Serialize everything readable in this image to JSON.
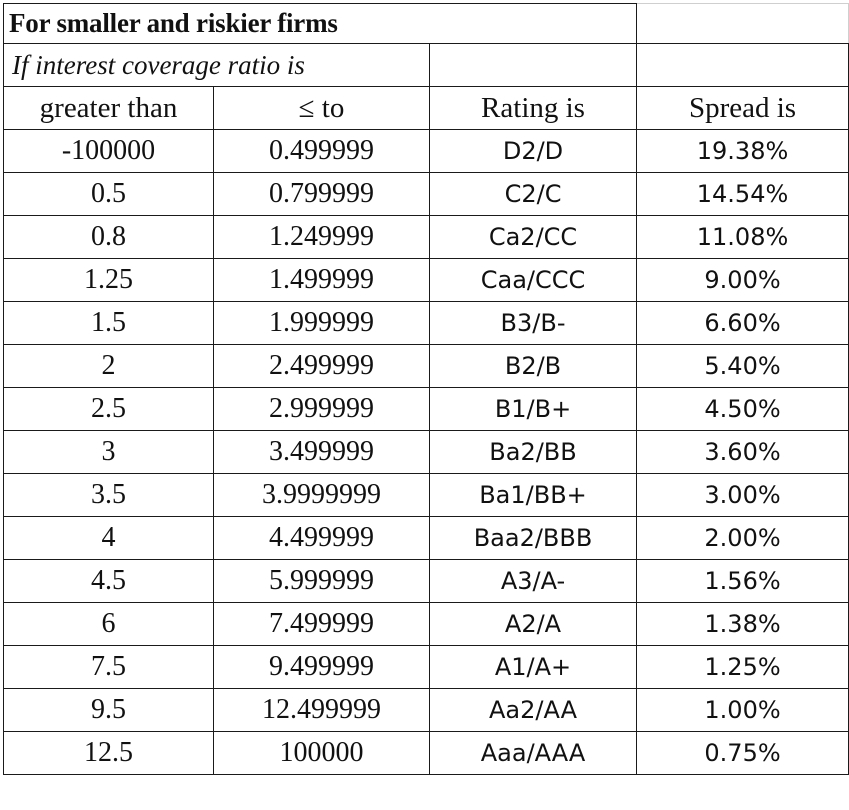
{
  "table": {
    "title": "For smaller and riskier firms",
    "subtitle": "If interest coverage ratio is",
    "headers": [
      "greater than",
      "≤ to",
      "Rating is",
      "Spread is"
    ],
    "rows": [
      [
        "-100000",
        "0.499999",
        "D2/D",
        "19.38%"
      ],
      [
        "0.5",
        "0.799999",
        "C2/C",
        "14.54%"
      ],
      [
        "0.8",
        "1.249999",
        "Ca2/CC",
        "11.08%"
      ],
      [
        "1.25",
        "1.499999",
        "Caa/CCC",
        "9.00%"
      ],
      [
        "1.5",
        "1.999999",
        "B3/B-",
        "6.60%"
      ],
      [
        "2",
        "2.499999",
        "B2/B",
        "5.40%"
      ],
      [
        "2.5",
        "2.999999",
        "B1/B+",
        "4.50%"
      ],
      [
        "3",
        "3.499999",
        "Ba2/BB",
        "3.60%"
      ],
      [
        "3.5",
        "3.9999999",
        "Ba1/BB+",
        "3.00%"
      ],
      [
        "4",
        "4.499999",
        "Baa2/BBB",
        "2.00%"
      ],
      [
        "4.5",
        "5.999999",
        "A3/A-",
        "1.56%"
      ],
      [
        "6",
        "7.499999",
        "A2/A",
        "1.38%"
      ],
      [
        "7.5",
        "9.499999",
        "A1/A+",
        "1.25%"
      ],
      [
        "9.5",
        "12.499999",
        "Aa2/AA",
        "1.00%"
      ],
      [
        "12.5",
        "100000",
        "Aaa/AAA",
        "0.75%"
      ]
    ]
  }
}
